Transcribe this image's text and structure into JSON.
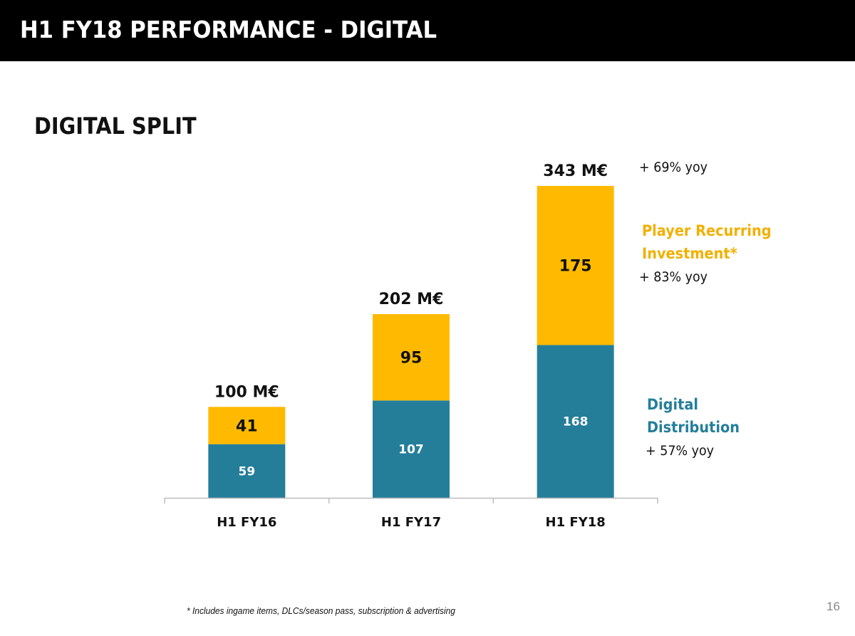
{
  "header": {
    "title": "H1 FY18 PERFORMANCE - DIGITAL"
  },
  "section": {
    "title": "DIGITAL SPLIT"
  },
  "colors": {
    "player_recurring": "#FFBA00",
    "digital_distribution": "#247E9A",
    "header_bg": "#000000"
  },
  "chart_data": {
    "type": "bar",
    "stacked": true,
    "title": "DIGITAL SPLIT",
    "xlabel": "",
    "ylabel": "",
    "unit": "M€",
    "categories": [
      "H1 FY16",
      "H1 FY17",
      "H1 FY18"
    ],
    "series": [
      {
        "name": "Digital Distribution",
        "values": [
          59,
          107,
          168
        ],
        "color": "#247E9A",
        "yoy": "+ 57% yoy"
      },
      {
        "name": "Player Recurring Investment*",
        "values": [
          41,
          95,
          175
        ],
        "color": "#FFBA00",
        "yoy": "+ 83% yoy"
      }
    ],
    "totals": [
      100,
      202,
      343
    ],
    "total_labels": [
      "100 M€",
      "202 M€",
      "343 M€"
    ],
    "total_yoy": "+ 69% yoy",
    "ylim": [
      0,
      343
    ],
    "grid": false,
    "legend": "right"
  },
  "legend": {
    "player_recurring_line1": "Player Recurring",
    "player_recurring_line2": "Investment*",
    "player_recurring_yoy": "+ 83% yoy",
    "digital_distribution_line1": "Digital",
    "digital_distribution_line2": "Distribution",
    "digital_distribution_yoy": "+ 57% yoy",
    "total_yoy": "+ 69% yoy"
  },
  "footnote": "* Includes ingame items,  DLCs/season pass,  subscription & advertising",
  "page_number": "16"
}
